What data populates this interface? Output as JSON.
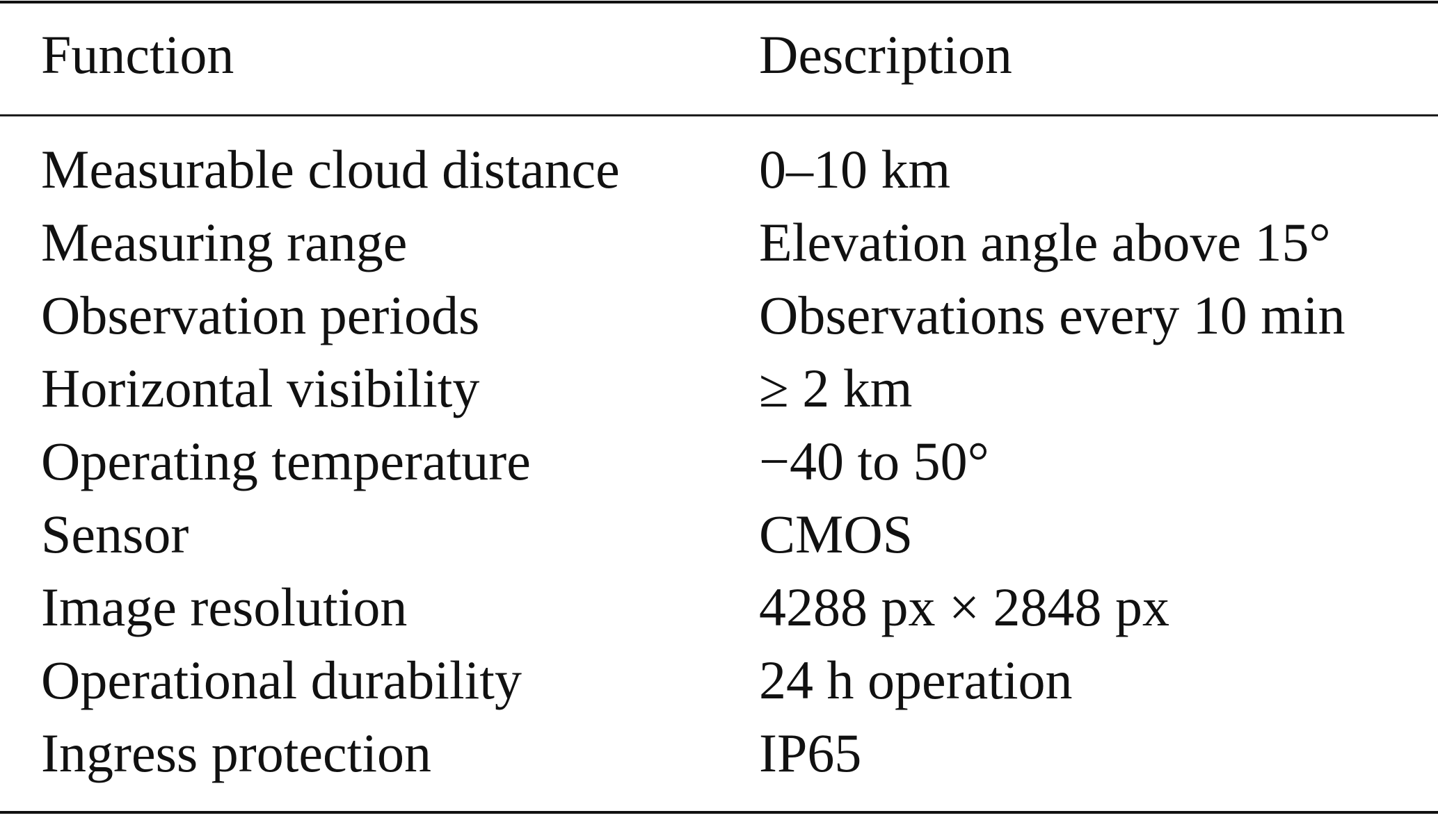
{
  "table": {
    "header": [
      "Function",
      "Description"
    ],
    "rows": [
      [
        "Measurable cloud distance",
        "0–10 km"
      ],
      [
        "Measuring range",
        "Elevation angle above 15°"
      ],
      [
        "Observation periods",
        "Observations every 10 min"
      ],
      [
        "Horizontal visibility",
        "≥ 2 km"
      ],
      [
        "Operating temperature",
        "−40 to 50°"
      ],
      [
        "Sensor",
        "CMOS"
      ],
      [
        "Image resolution",
        "4288 px × 2848 px"
      ],
      [
        "Operational durability",
        "24 h operation"
      ],
      [
        "Ingress protection",
        "IP65"
      ]
    ]
  }
}
